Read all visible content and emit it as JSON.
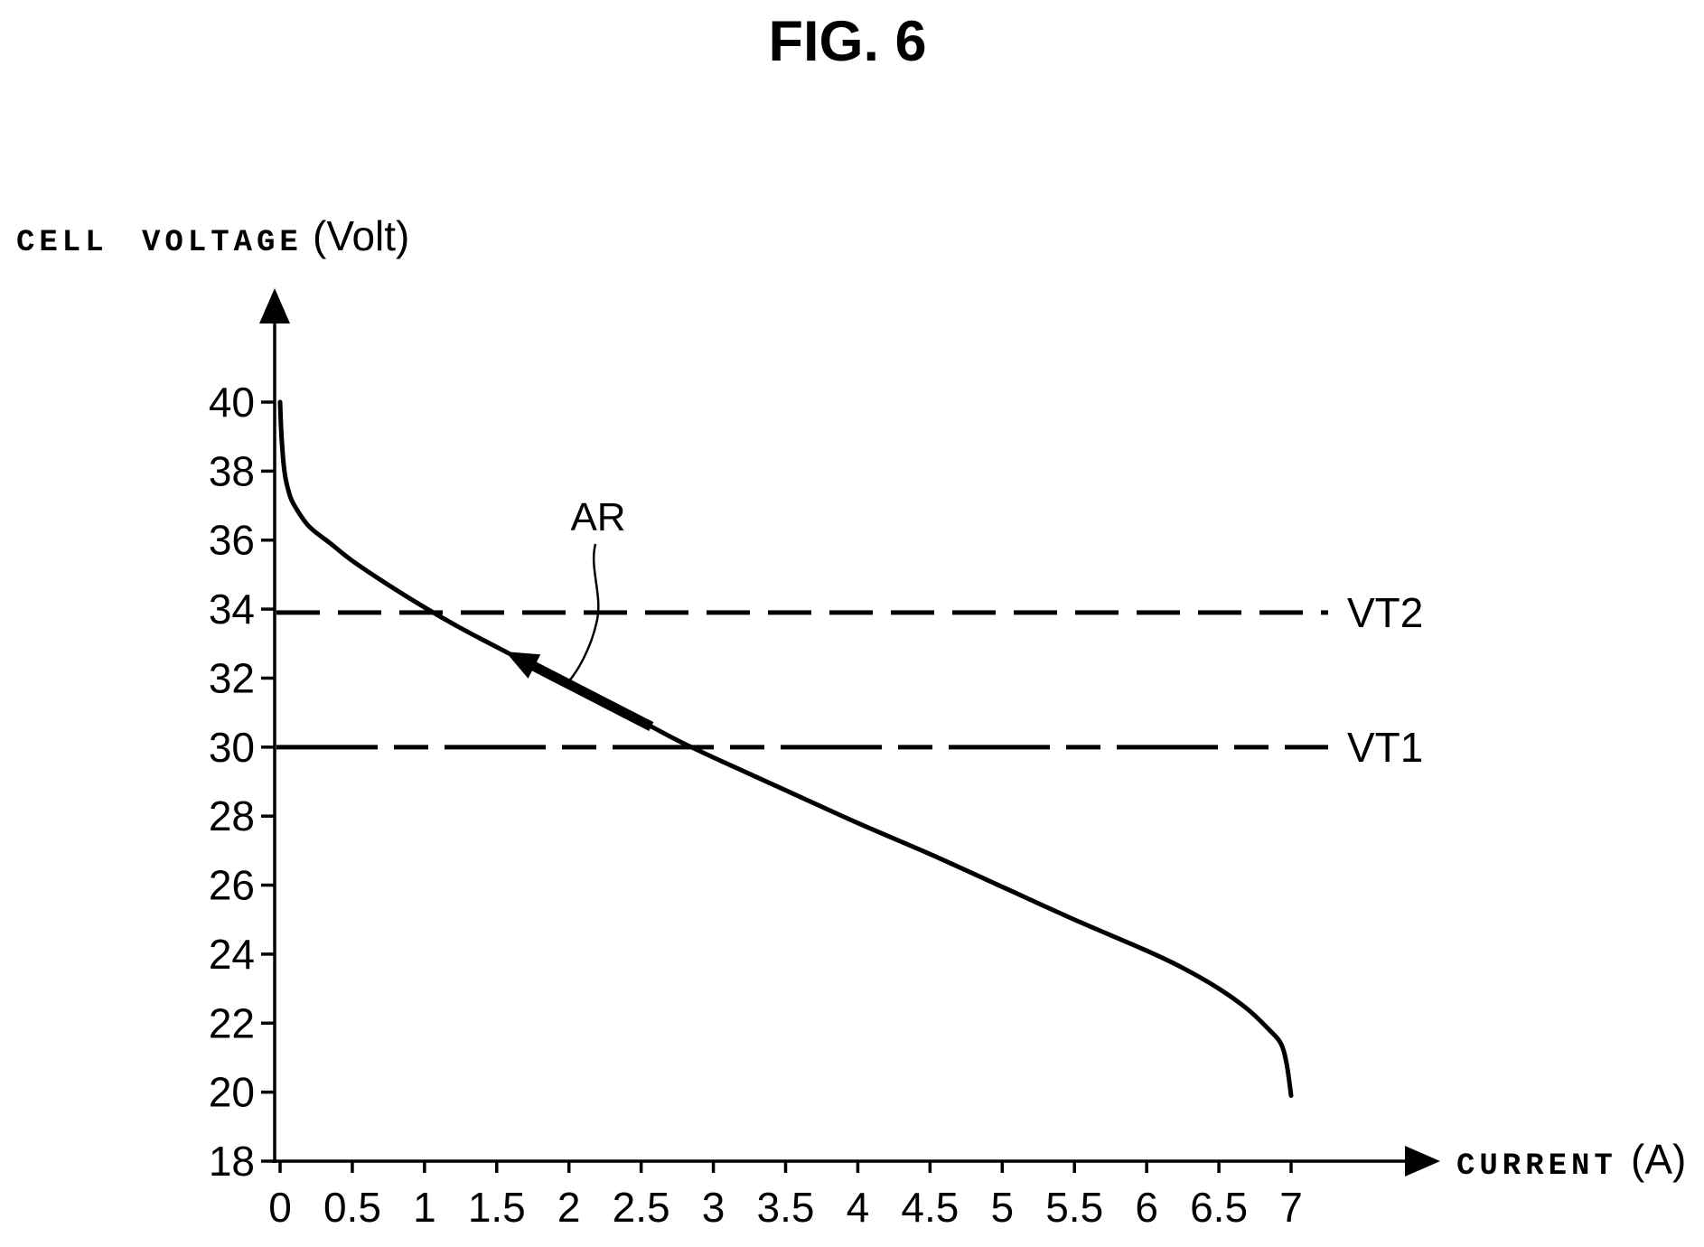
{
  "colors": {
    "ink": "#000000",
    "background": "#ffffff"
  },
  "chart_data": {
    "type": "line",
    "title": "FIG. 6",
    "ylabel": {
      "name": "CELL VOLTAGE",
      "unit": "(Volt)"
    },
    "xlabel": {
      "name": "CURRENT",
      "unit": "(A)"
    },
    "xlim": [
      0,
      7
    ],
    "ylim": [
      18,
      40
    ],
    "x_ticks": [
      0,
      0.5,
      1,
      1.5,
      2,
      2.5,
      3,
      3.5,
      4,
      4.5,
      5,
      5.5,
      6,
      6.5,
      7
    ],
    "y_ticks": [
      18,
      20,
      22,
      24,
      26,
      28,
      30,
      32,
      34,
      36,
      38,
      40
    ],
    "grid": false,
    "series": [
      {
        "x": [
          0,
          0.01,
          0.03,
          0.06,
          0.1,
          0.2,
          0.35,
          0.5,
          0.75,
          1.0,
          1.25,
          1.5,
          1.75,
          2.0,
          2.25,
          2.5,
          2.75,
          3.0,
          3.5,
          4.0,
          4.5,
          5.0,
          5.5,
          6.0,
          6.25,
          6.5,
          6.7,
          6.85,
          6.93,
          6.97,
          7.0
        ],
        "y": [
          40.0,
          39.0,
          38.0,
          37.4,
          37.0,
          36.4,
          35.9,
          35.4,
          34.7,
          34.05,
          33.45,
          32.9,
          32.35,
          31.8,
          31.25,
          30.75,
          30.2,
          29.7,
          28.75,
          27.8,
          26.9,
          25.95,
          25.0,
          24.1,
          23.6,
          23.0,
          22.4,
          21.8,
          21.4,
          20.8,
          19.9
        ]
      }
    ],
    "reference_lines": [
      {
        "label": "VT2",
        "y": 33.9,
        "line_style": "dashed"
      },
      {
        "label": "VT1",
        "y": 30,
        "line_style": "dash-dot"
      }
    ],
    "annotations": [
      {
        "label": "AR",
        "type": "arrow-along-curve",
        "x_from": 2.57,
        "x_to": 1.56
      }
    ]
  }
}
